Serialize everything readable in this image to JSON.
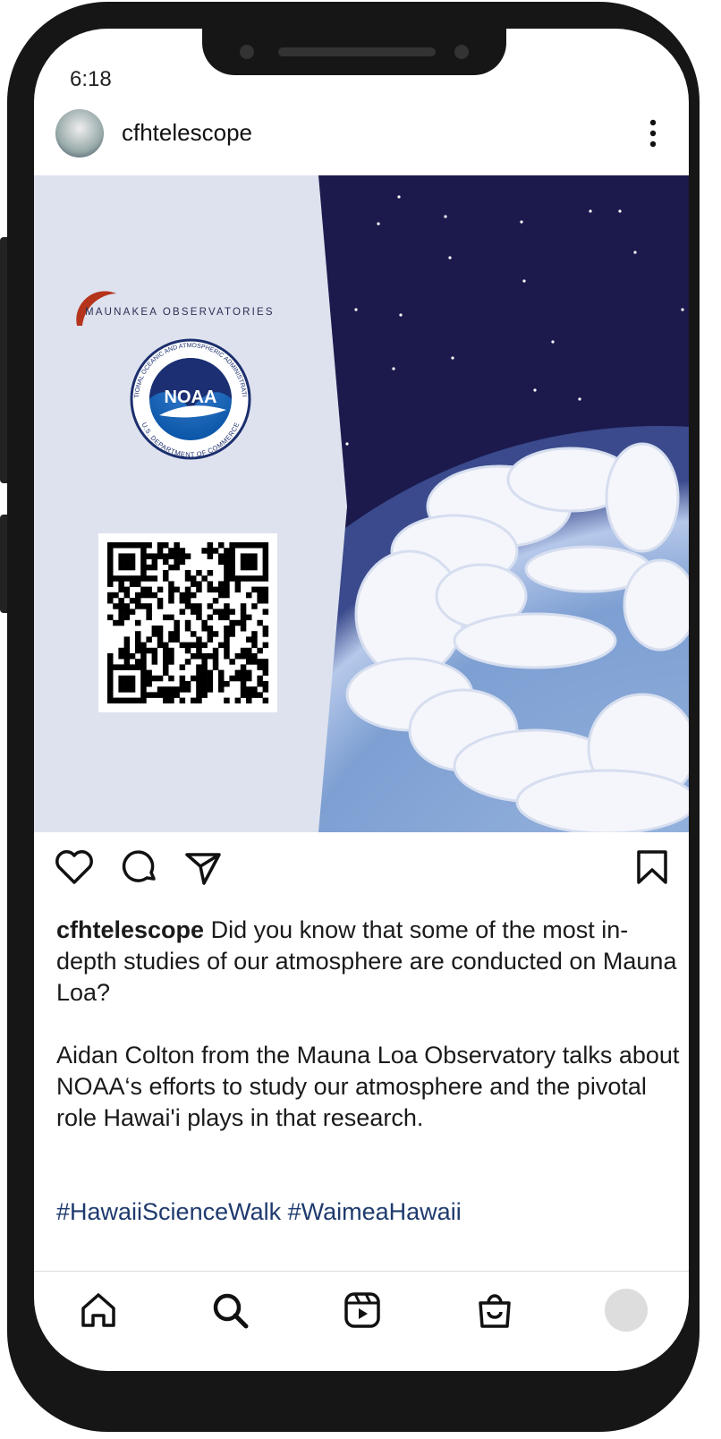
{
  "status_bar": {
    "time": "6:18"
  },
  "post": {
    "username": "cfhtelescope",
    "image": {
      "org_name": "MAUNAKEA OBSERVATORIES",
      "logo_text": "NOAA",
      "logo_ring_top": "NATIONAL OCEANIC AND ATMOSPHERIC ADMINISTRATION",
      "logo_ring_bottom": "U.S. DEPARTMENT OF COMMERCE"
    },
    "caption": {
      "username": "cfhtelescope",
      "paragraphs": [
        "Did you know that some of the most in-depth studies of our atmosphere are conducted on Mauna Loa?",
        "Aidan Colton from the Mauna Loa Observatory talks about NOAA‘s efforts to study our atmosphere and the pivotal role Hawai'i plays in that research."
      ],
      "hashtags": [
        "#HawaiiScienceWalk",
        "#WaimeaHawaii"
      ]
    }
  }
}
